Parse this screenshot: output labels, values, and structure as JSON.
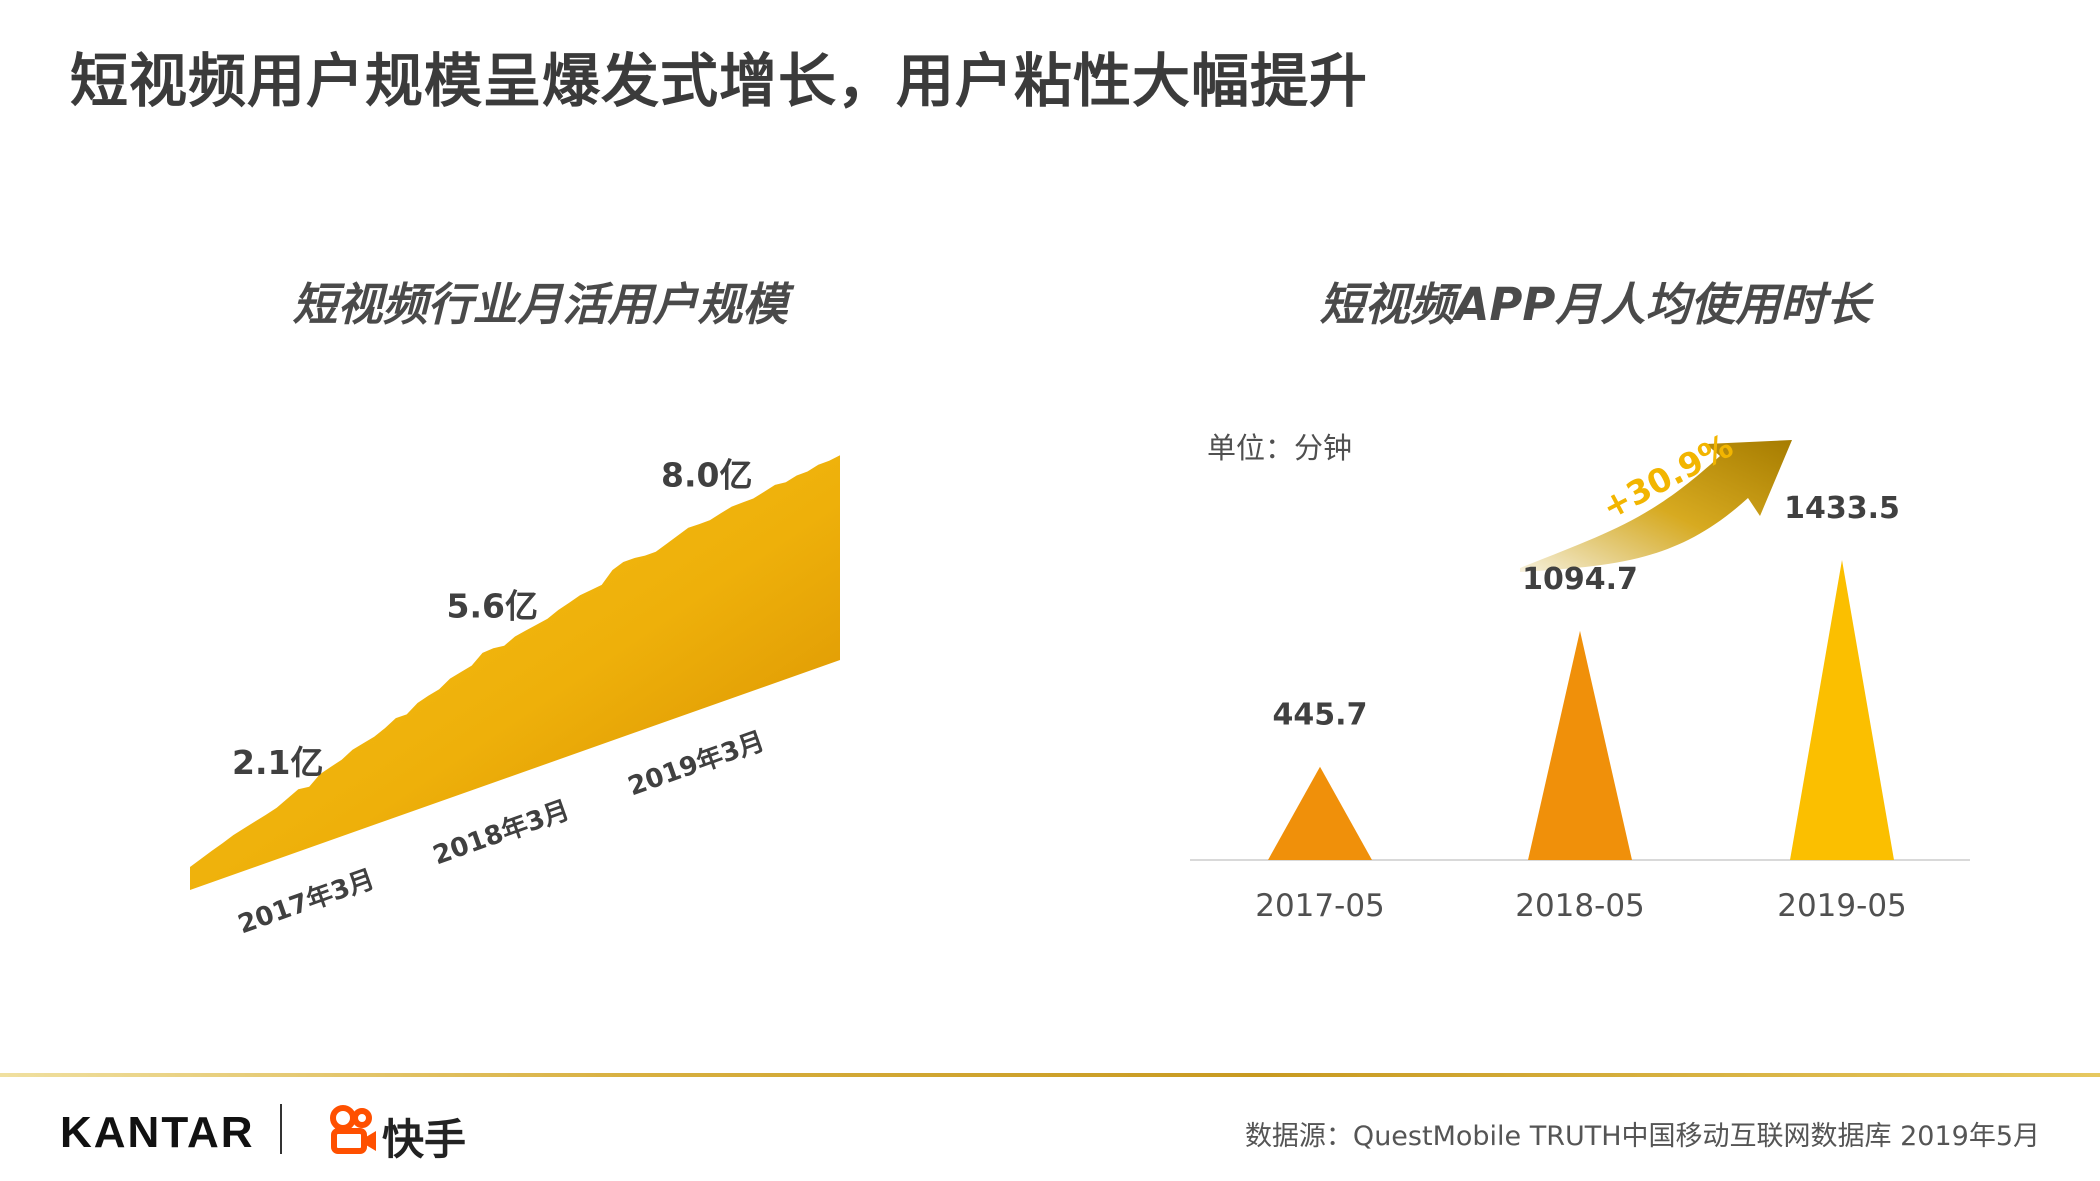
{
  "header": {
    "title": "短视频用户规模呈爆发式增长，用户粘性大幅提升"
  },
  "left_chart": {
    "title": "短视频行业月活用户规模",
    "labels": [
      "2.1亿",
      "5.6亿",
      "8.0亿"
    ],
    "x_labels": [
      "2017年3月",
      "2018年3月",
      "2019年3月"
    ]
  },
  "right_chart": {
    "title": "短视频APP月人均使用时长",
    "unit": "单位：分钟",
    "growth": "+30.9%",
    "categories": [
      "2017-05",
      "2018-05",
      "2019-05"
    ],
    "values": [
      "445.7",
      "1094.7",
      "1433.5"
    ]
  },
  "footer": {
    "kantar": "KANTAR",
    "kuaishou": "快手",
    "source": "数据源：QuestMobile TRUTH中国移动互联网数据库 2019年5月"
  },
  "colors": {
    "accent_gold": "#f2b500",
    "bar_orange": "#f0900a",
    "bar_yellow": "#fbbf00",
    "title_gray": "#3b3b3b"
  },
  "chart_data": [
    {
      "type": "area",
      "title": "短视频行业月活用户规模",
      "x": [
        "2017年3月",
        "2018年3月",
        "2019年3月"
      ],
      "series": [
        {
          "values": [
            2.1,
            5.6,
            8.0
          ]
        }
      ],
      "ylabel": "",
      "xlabel": ""
    },
    {
      "type": "bar",
      "title": "短视频APP月人均使用时长",
      "categories": [
        "2017-05",
        "2018-05",
        "2019-05"
      ],
      "values": [
        445.7,
        1094.7,
        1433.5
      ],
      "ylabel": "单位：分钟"
    }
  ]
}
